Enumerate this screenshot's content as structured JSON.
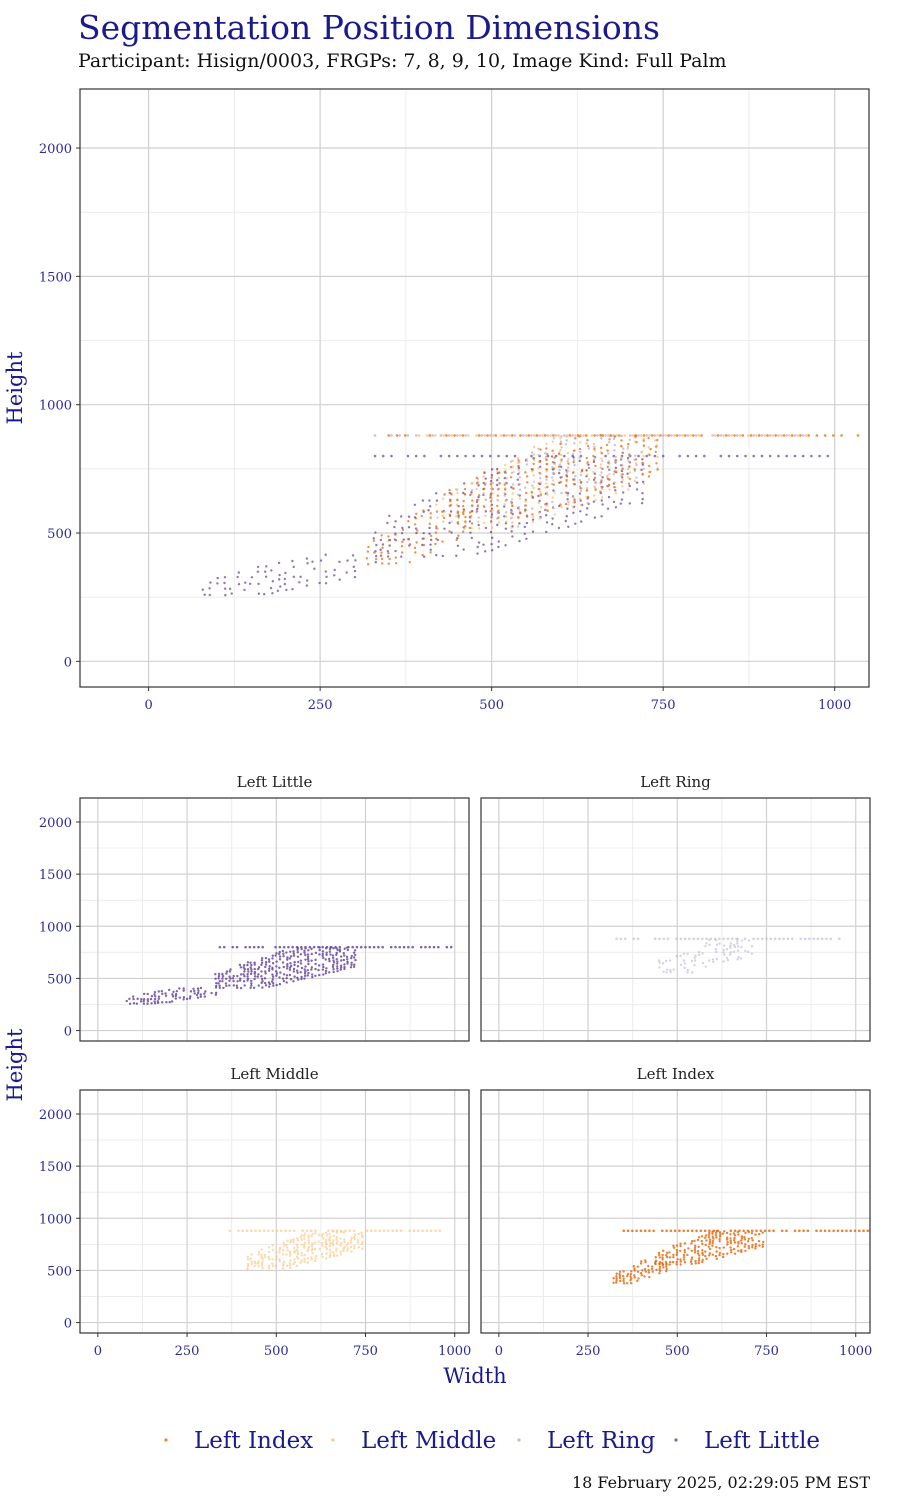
{
  "title": "Segmentation Position Dimensions",
  "subtitle": "Participant: Hisign/0003, FRGPs: 7, 8, 9, 10, Image Kind: Full Palm",
  "footer": "18 February 2025, 02:29:05 PM EST",
  "colors": {
    "title": "#1a1a8c",
    "tick": "#2a2a9c",
    "grid_major": "#d0d0d0",
    "grid_minor": "#ececec",
    "panel_border": "#333333"
  },
  "chart_data": [
    {
      "type": "scatter",
      "panel": "main",
      "title": "",
      "xlabel": "",
      "ylabel": "Height",
      "xlim": [
        -100,
        1050
      ],
      "ylim": [
        -100,
        2230
      ],
      "xticks": [
        0,
        250,
        500,
        750,
        1000
      ],
      "yticks": [
        0,
        500,
        1000,
        1500,
        2000
      ],
      "grid": true,
      "series_ref": [
        "Left Index",
        "Left Middle",
        "Ring",
        "Left Little"
      ]
    },
    {
      "type": "scatter",
      "panel": "facet",
      "xlabel": "Width",
      "ylabel": "Height",
      "xlim": [
        -50,
        1040
      ],
      "ylim": [
        -100,
        2230
      ],
      "xticks": [
        0,
        250,
        500,
        750,
        1000
      ],
      "yticks": [
        0,
        500,
        1000,
        1500,
        2000
      ],
      "grid": true,
      "facets": [
        "Left Little",
        "Left Ring",
        "Left Middle",
        "Left Index"
      ]
    }
  ],
  "series": [
    {
      "name": "Left Little",
      "color": "#5e3c99",
      "row_height": 800,
      "row_x": [
        330,
        1000
      ],
      "clusters": [
        {
          "x": [
            80,
            330
          ],
          "y": [
            260,
            420
          ]
        },
        {
          "x": [
            330,
            720
          ],
          "y": [
            410,
            800
          ]
        }
      ]
    },
    {
      "name": "Left Ring",
      "color": "#b2abd2",
      "row_height": 880,
      "row_x": [
        330,
        960
      ],
      "clusters": [
        {
          "x": [
            450,
            720
          ],
          "y": [
            560,
            880
          ]
        }
      ]
    },
    {
      "name": "Left Middle",
      "color": "#fdb863",
      "row_height": 880,
      "row_x": [
        370,
        960
      ],
      "clusters": [
        {
          "x": [
            420,
            740
          ],
          "y": [
            520,
            880
          ]
        }
      ]
    },
    {
      "name": "Left Index",
      "color": "#e66101",
      "row_height": 880,
      "row_x": [
        350,
        1040
      ],
      "clusters": [
        {
          "x": [
            320,
            470
          ],
          "y": [
            380,
            600
          ]
        },
        {
          "x": [
            440,
            740
          ],
          "y": [
            560,
            880
          ]
        }
      ]
    }
  ],
  "legend": {
    "position": "bottom",
    "items": [
      "Left Index",
      "Left Middle",
      "Left Ring",
      "Left Little"
    ]
  }
}
